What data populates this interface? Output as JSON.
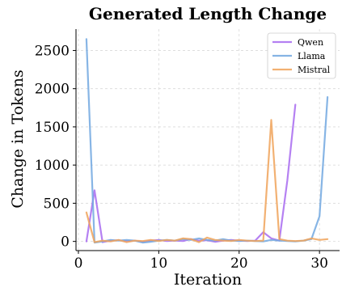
{
  "chart_data": {
    "type": "line",
    "title": "Generated Length Change",
    "xlabel": "Iteration",
    "ylabel": "Change in Tokens",
    "xlim": [
      -0.3,
      32.5
    ],
    "ylim": [
      -120,
      2780
    ],
    "xticks": [
      0,
      10,
      20,
      30
    ],
    "yticks": [
      0,
      500,
      1000,
      1500,
      2000,
      2500
    ],
    "grid": true,
    "legend_position": "top-right",
    "series": [
      {
        "name": "Qwen",
        "color": "#a86bf0",
        "x": [
          1,
          2,
          3,
          4,
          5,
          6,
          7,
          8,
          9,
          10,
          11,
          12,
          13,
          14,
          15,
          16,
          17,
          18,
          19,
          20,
          21,
          22,
          23,
          24,
          25,
          26,
          27
        ],
        "y": [
          0,
          670,
          -10,
          10,
          15,
          5,
          10,
          -5,
          10,
          20,
          5,
          10,
          5,
          30,
          10,
          15,
          -5,
          10,
          20,
          10,
          5,
          10,
          120,
          40,
          10,
          800,
          1790
        ]
      },
      {
        "name": "Llama",
        "color": "#72a8e0",
        "x": [
          1,
          2,
          3,
          4,
          5,
          6,
          7,
          8,
          9,
          10,
          11,
          12,
          13,
          14,
          15,
          16,
          17,
          18,
          19,
          20,
          21,
          22,
          23,
          24,
          25,
          26,
          27,
          28,
          29,
          30,
          31
        ],
        "y": [
          2650,
          -15,
          0,
          20,
          10,
          20,
          10,
          -15,
          -5,
          10,
          20,
          10,
          30,
          20,
          40,
          20,
          10,
          30,
          10,
          5,
          10,
          5,
          0,
          20,
          10,
          5,
          0,
          10,
          30,
          330,
          1890
        ]
      },
      {
        "name": "Mistral",
        "color": "#f0a35a",
        "x": [
          1,
          2,
          3,
          4,
          5,
          6,
          7,
          8,
          9,
          10,
          11,
          12,
          13,
          14,
          15,
          16,
          17,
          18,
          19,
          20,
          21,
          22,
          23,
          24,
          25,
          26,
          27,
          28,
          29,
          30,
          31
        ],
        "y": [
          380,
          -10,
          10,
          0,
          20,
          -10,
          10,
          5,
          20,
          5,
          20,
          10,
          40,
          30,
          -10,
          50,
          20,
          10,
          5,
          20,
          10,
          5,
          10,
          1590,
          30,
          10,
          5,
          10,
          40,
          20,
          30
        ]
      }
    ]
  }
}
